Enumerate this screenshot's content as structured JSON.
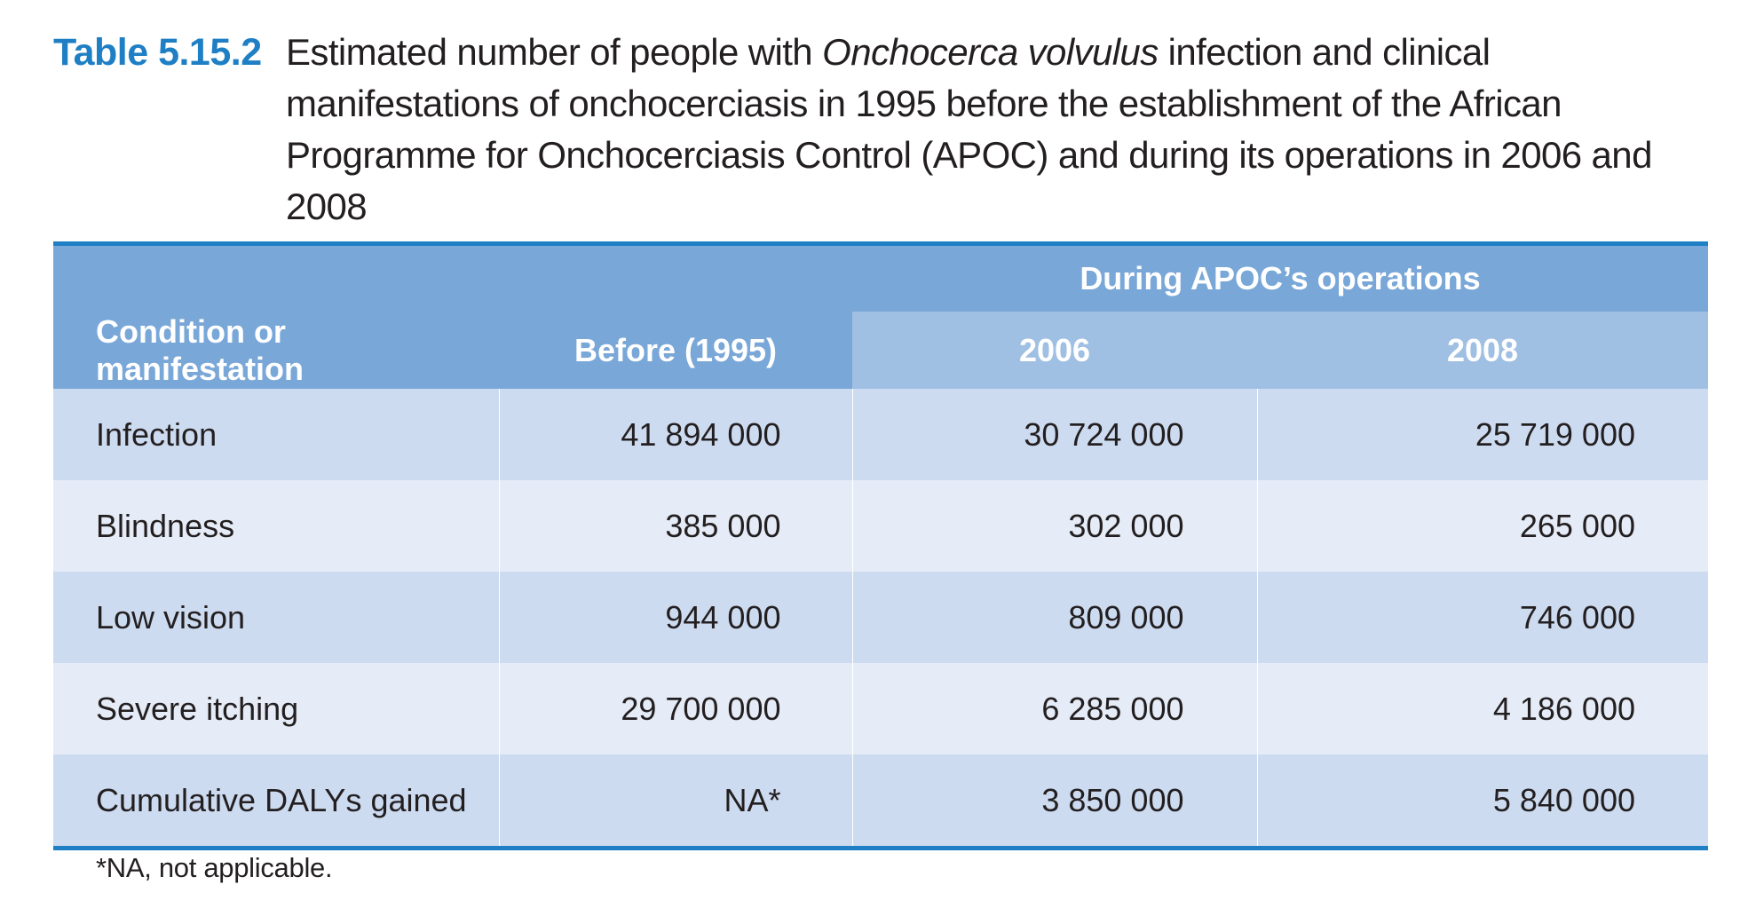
{
  "caption": {
    "label": "Table 5.15.2",
    "text_before": "Estimated number of people with ",
    "text_italic": "Onchocerca volvulus",
    "text_after": " infection and clinical manifestations of onchocerciasis in 1995 before the establishment of the African Programme for Onchocerciasis Control (APOC) and during its operations in 2006 and 2008"
  },
  "table": {
    "group_header": "During APOC’s operations",
    "headers": [
      "Condition or manifestation",
      "Before (1995)",
      "2006",
      "2008"
    ],
    "rows": [
      {
        "condition": "Infection",
        "before": "41 894 000",
        "y2006": "30 724 000",
        "y2008": "25 719 000"
      },
      {
        "condition": "Blindness",
        "before": "385 000",
        "y2006": "302 000",
        "y2008": "265 000"
      },
      {
        "condition": "Low vision",
        "before": "944 000",
        "y2006": "809 000",
        "y2008": "746 000"
      },
      {
        "condition": "Severe itching",
        "before": "29 700 000",
        "y2006": "6 285 000",
        "y2008": "4 186 000"
      },
      {
        "condition": "Cumulative DALYs gained",
        "before": "NA*",
        "y2006": "3 850 000",
        "y2008": "5 840 000"
      }
    ]
  },
  "footnote": "*NA, not applicable.",
  "colors": {
    "accent": "#1f7fc4",
    "header_dark": "#79a7d8",
    "header_light": "#9fbfe3",
    "row_odd": "#cddbf0",
    "row_even": "#e5ecf7"
  }
}
